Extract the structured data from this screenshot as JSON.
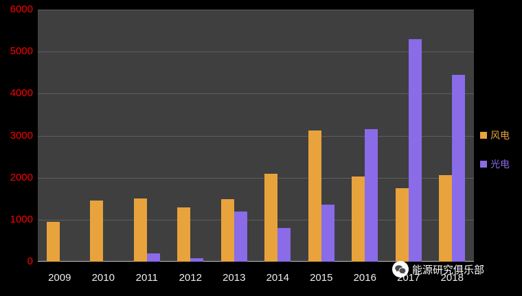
{
  "chart_data": {
    "type": "bar",
    "title": "",
    "xlabel": "",
    "ylabel": "",
    "categories": [
      "2009",
      "2010",
      "2011",
      "2012",
      "2013",
      "2014",
      "2015",
      "2016",
      "2017",
      "2018"
    ],
    "series": [
      {
        "key": "wind",
        "name": "风电",
        "color": "#E8A33D",
        "values": [
          950,
          1450,
          1500,
          1290,
          1480,
          2090,
          3120,
          2030,
          1750,
          2060
        ]
      },
      {
        "key": "solar",
        "name": "光电",
        "color": "#8A6BE8",
        "values": [
          0,
          0,
          190,
          90,
          1200,
          800,
          1360,
          3160,
          5300,
          4450
        ]
      }
    ],
    "ylim": [
      0,
      6000
    ],
    "ytick": 1000,
    "grid": true,
    "legend_position": "right"
  },
  "watermark": {
    "label": "能源研究俱乐部"
  },
  "styles": {
    "background": "#000000",
    "plot_background": "#3F3F3F",
    "gridline_color": "#5E5E5E",
    "axis_line_color": "#C0C0C0",
    "y_tick_color": "#FF0000",
    "x_tick_color": "#EDEDED",
    "watermark_color": "#FFFFFF"
  }
}
